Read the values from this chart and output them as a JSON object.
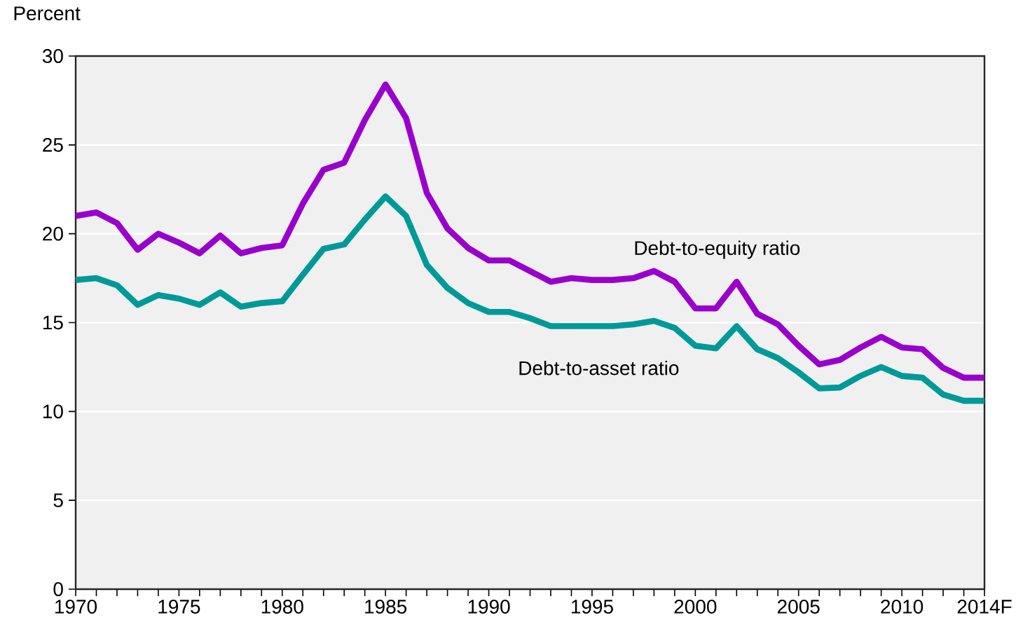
{
  "chart_data": {
    "type": "line",
    "ylabel": "Percent",
    "x": [
      1970,
      1971,
      1972,
      1973,
      1974,
      1975,
      1976,
      1977,
      1978,
      1979,
      1980,
      1981,
      1982,
      1983,
      1984,
      1985,
      1986,
      1987,
      1988,
      1989,
      1990,
      1991,
      1992,
      1993,
      1994,
      1995,
      1996,
      1997,
      1998,
      1999,
      2000,
      2001,
      2002,
      2003,
      2004,
      2005,
      2006,
      2007,
      2008,
      2009,
      2010,
      2011,
      2012,
      2013,
      2014
    ],
    "series": [
      {
        "name": "Debt-to-equity ratio",
        "color": "#9900cc",
        "values": [
          21.0,
          21.2,
          20.6,
          19.1,
          20.0,
          19.5,
          18.9,
          19.9,
          18.9,
          19.2,
          19.35,
          21.7,
          23.6,
          24.0,
          26.4,
          28.4,
          26.5,
          22.3,
          20.3,
          19.2,
          18.5,
          18.5,
          17.9,
          17.3,
          17.5,
          17.4,
          17.4,
          17.5,
          17.9,
          17.3,
          15.8,
          15.8,
          17.3,
          15.5,
          14.9,
          13.7,
          12.65,
          12.9,
          13.6,
          14.2,
          13.6,
          13.5,
          12.45,
          11.9,
          11.9
        ]
      },
      {
        "name": "Debt-to-asset ratio",
        "color": "#009999",
        "values": [
          17.4,
          17.5,
          17.1,
          16.0,
          16.55,
          16.35,
          16.0,
          16.7,
          15.9,
          16.1,
          16.2,
          17.7,
          19.15,
          19.4,
          20.8,
          22.1,
          21.0,
          18.25,
          16.95,
          16.1,
          15.6,
          15.6,
          15.25,
          14.8,
          14.8,
          14.8,
          14.8,
          14.9,
          15.1,
          14.7,
          13.7,
          13.55,
          14.8,
          13.5,
          13.0,
          12.2,
          11.3,
          11.35,
          12.0,
          12.5,
          12.0,
          11.9,
          10.95,
          10.6,
          10.6
        ]
      }
    ],
    "xlim": [
      1970,
      2014
    ],
    "ylim": [
      0,
      30
    ],
    "xticks": [
      1970,
      {
        "value": 1971,
        "label": null
      },
      {
        "value": 1972,
        "label": null
      },
      {
        "value": 1973,
        "label": null
      },
      {
        "value": 1974,
        "label": null
      },
      1975,
      {
        "value": 1976,
        "label": null
      },
      {
        "value": 1977,
        "label": null
      },
      {
        "value": 1978,
        "label": null
      },
      {
        "value": 1979,
        "label": null
      },
      1980,
      {
        "value": 1981,
        "label": null
      },
      {
        "value": 1982,
        "label": null
      },
      {
        "value": 1983,
        "label": null
      },
      {
        "value": 1984,
        "label": null
      },
      1985,
      {
        "value": 1986,
        "label": null
      },
      {
        "value": 1987,
        "label": null
      },
      {
        "value": 1988,
        "label": null
      },
      {
        "value": 1989,
        "label": null
      },
      1990,
      {
        "value": 1991,
        "label": null
      },
      {
        "value": 1992,
        "label": null
      },
      {
        "value": 1993,
        "label": null
      },
      {
        "value": 1994,
        "label": null
      },
      1995,
      {
        "value": 1996,
        "label": null
      },
      {
        "value": 1997,
        "label": null
      },
      {
        "value": 1998,
        "label": null
      },
      {
        "value": 1999,
        "label": null
      },
      2000,
      {
        "value": 2001,
        "label": null
      },
      {
        "value": 2002,
        "label": null
      },
      {
        "value": 2003,
        "label": null
      },
      {
        "value": 2004,
        "label": null
      },
      2005,
      {
        "value": 2006,
        "label": null
      },
      {
        "value": 2007,
        "label": null
      },
      {
        "value": 2008,
        "label": null
      },
      {
        "value": 2009,
        "label": null
      },
      2010,
      {
        "value": 2011,
        "label": null
      },
      {
        "value": 2012,
        "label": null
      },
      {
        "value": 2013,
        "label": null
      },
      {
        "value": 2014,
        "label": "2014F"
      }
    ],
    "yticks": [
      0,
      5,
      10,
      15,
      20,
      25,
      30
    ],
    "grid": "y",
    "legend": false,
    "marker": "none",
    "line_style": "solid"
  }
}
